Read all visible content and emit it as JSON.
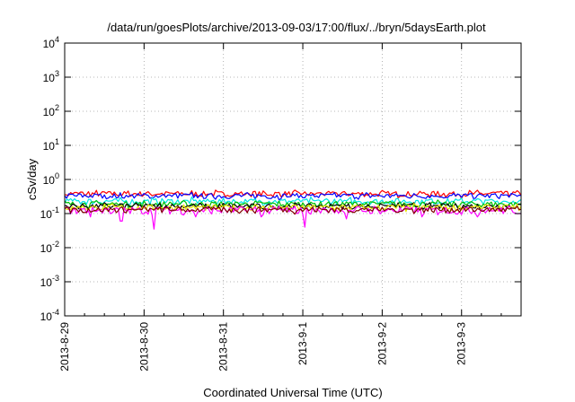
{
  "chart_data": {
    "type": "line",
    "title": "/data/run/goesPlots/archive/2013-09-03/17:00/flux/../bryn/5daysEarth.plot",
    "xlabel": "Coordinated Universal Time (UTC)",
    "ylabel": "cSv/day",
    "yscale": "log",
    "ylim": [
      0.0001,
      10000
    ],
    "xlim": [
      "2013-08-29 00:00",
      "2013-09-03 18:00"
    ],
    "grid": true,
    "x_ticks": [
      "2013-8-29",
      "2013-8-30",
      "2013-8-31",
      "2013-9-1",
      "2013-9-2",
      "2013-9-3"
    ],
    "y_ticks": [
      {
        "base": "10",
        "exp": "-4",
        "value": 0.0001
      },
      {
        "base": "10",
        "exp": "-3",
        "value": 0.001
      },
      {
        "base": "10",
        "exp": "-2",
        "value": 0.01
      },
      {
        "base": "10",
        "exp": "-1",
        "value": 0.1
      },
      {
        "base": "10",
        "exp": "0",
        "value": 1
      },
      {
        "base": "10",
        "exp": "1",
        "value": 10
      },
      {
        "base": "10",
        "exp": "2",
        "value": 100
      },
      {
        "base": "10",
        "exp": "3",
        "value": 1000
      },
      {
        "base": "10",
        "exp": "4",
        "value": 10000
      }
    ],
    "series": [
      {
        "color": "#ff0000",
        "base": 0.38,
        "amp": 0.07
      },
      {
        "color": "#0000ff",
        "base": 0.33,
        "amp": 0.06
      },
      {
        "color": "#00e5e5",
        "base": 0.23,
        "amp": 0.045
      },
      {
        "color": "#00c000",
        "base": 0.19,
        "amp": 0.035
      },
      {
        "color": "#000000",
        "base": 0.165,
        "amp": 0.03
      },
      {
        "color": "#e6e600",
        "base": 0.15,
        "amp": 0.03
      },
      {
        "color": "#ff00ff",
        "base": 0.125,
        "amp": 0.03,
        "dips": [
          {
            "day": 0.33,
            "value": 0.08
          },
          {
            "day": 0.72,
            "value": 0.06
          },
          {
            "day": 1.12,
            "value": 0.035
          },
          {
            "day": 1.65,
            "value": 0.08
          },
          {
            "day": 2.48,
            "value": 0.08
          },
          {
            "day": 3.02,
            "value": 0.04
          },
          {
            "day": 3.55,
            "value": 0.07
          },
          {
            "day": 4.5,
            "value": 0.08
          },
          {
            "day": 5.2,
            "value": 0.08
          }
        ]
      },
      {
        "color": "#800000",
        "base": 0.13,
        "amp": 0.025
      }
    ]
  }
}
